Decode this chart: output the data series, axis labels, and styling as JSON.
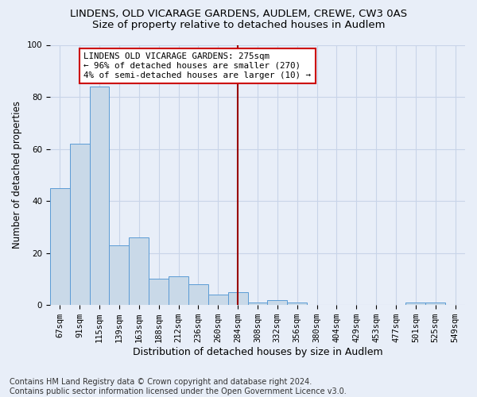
{
  "title": "LINDENS, OLD VICARAGE GARDENS, AUDLEM, CREWE, CW3 0AS",
  "subtitle": "Size of property relative to detached houses in Audlem",
  "xlabel": "Distribution of detached houses by size in Audlem",
  "ylabel": "Number of detached properties",
  "bar_labels": [
    "67sqm",
    "91sqm",
    "115sqm",
    "139sqm",
    "163sqm",
    "188sqm",
    "212sqm",
    "236sqm",
    "260sqm",
    "284sqm",
    "308sqm",
    "332sqm",
    "356sqm",
    "380sqm",
    "404sqm",
    "429sqm",
    "453sqm",
    "477sqm",
    "501sqm",
    "525sqm",
    "549sqm"
  ],
  "bar_values": [
    45,
    62,
    84,
    23,
    26,
    10,
    11,
    8,
    4,
    5,
    1,
    2,
    1,
    0,
    0,
    0,
    0,
    0,
    1,
    1,
    0
  ],
  "bar_color": "#c9d9e8",
  "bar_edge_color": "#5b9bd5",
  "vline_x": 9.0,
  "vline_color": "#990000",
  "ylim": [
    0,
    100
  ],
  "yticks": [
    0,
    20,
    40,
    60,
    80,
    100
  ],
  "grid_color": "#c8d4e8",
  "background_color": "#e8eef8",
  "annotation_text": "LINDENS OLD VICARAGE GARDENS: 275sqm\n← 96% of detached houses are smaller (270)\n4% of semi-detached houses are larger (10) →",
  "annotation_box_color": "#ffffff",
  "annotation_box_edge": "#cc0000",
  "footer": "Contains HM Land Registry data © Crown copyright and database right 2024.\nContains public sector information licensed under the Open Government Licence v3.0.",
  "title_fontsize": 9.5,
  "subtitle_fontsize": 9.5,
  "ylabel_fontsize": 8.5,
  "xlabel_fontsize": 9,
  "tick_fontsize": 7.5,
  "annotation_fontsize": 7.8,
  "footer_fontsize": 7
}
